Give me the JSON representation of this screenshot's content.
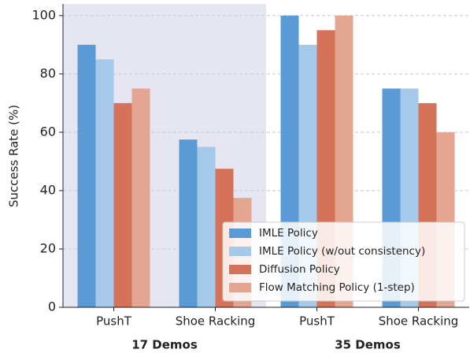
{
  "chart_data": {
    "type": "bar",
    "y_label": "Success Rate (%)",
    "categories": [
      "PushT",
      "Shoe Racking",
      "PushT",
      "Shoe Racking"
    ],
    "group_labels": [
      "17 Demos",
      "35 Demos"
    ],
    "series": [
      {
        "name": "IMLE Policy",
        "color": "#5b9bd5",
        "values": [
          90,
          57.5,
          100,
          75
        ]
      },
      {
        "name": "IMLE Policy (w/out consistency)",
        "color": "#a6c8e9",
        "values": [
          85,
          55,
          90,
          75
        ]
      },
      {
        "name": "Diffusion Policy",
        "color": "#d5735a",
        "values": [
          70,
          47.5,
          95,
          70
        ]
      },
      {
        "name": "Flow Matching Policy (1-step)",
        "color": "#e4a691",
        "values": [
          75,
          37.5,
          100,
          60
        ]
      }
    ],
    "ylim": [
      0,
      104
    ],
    "yticks": [
      0,
      20,
      40,
      60,
      80,
      100
    ],
    "grid": true,
    "legend": "lower right"
  }
}
